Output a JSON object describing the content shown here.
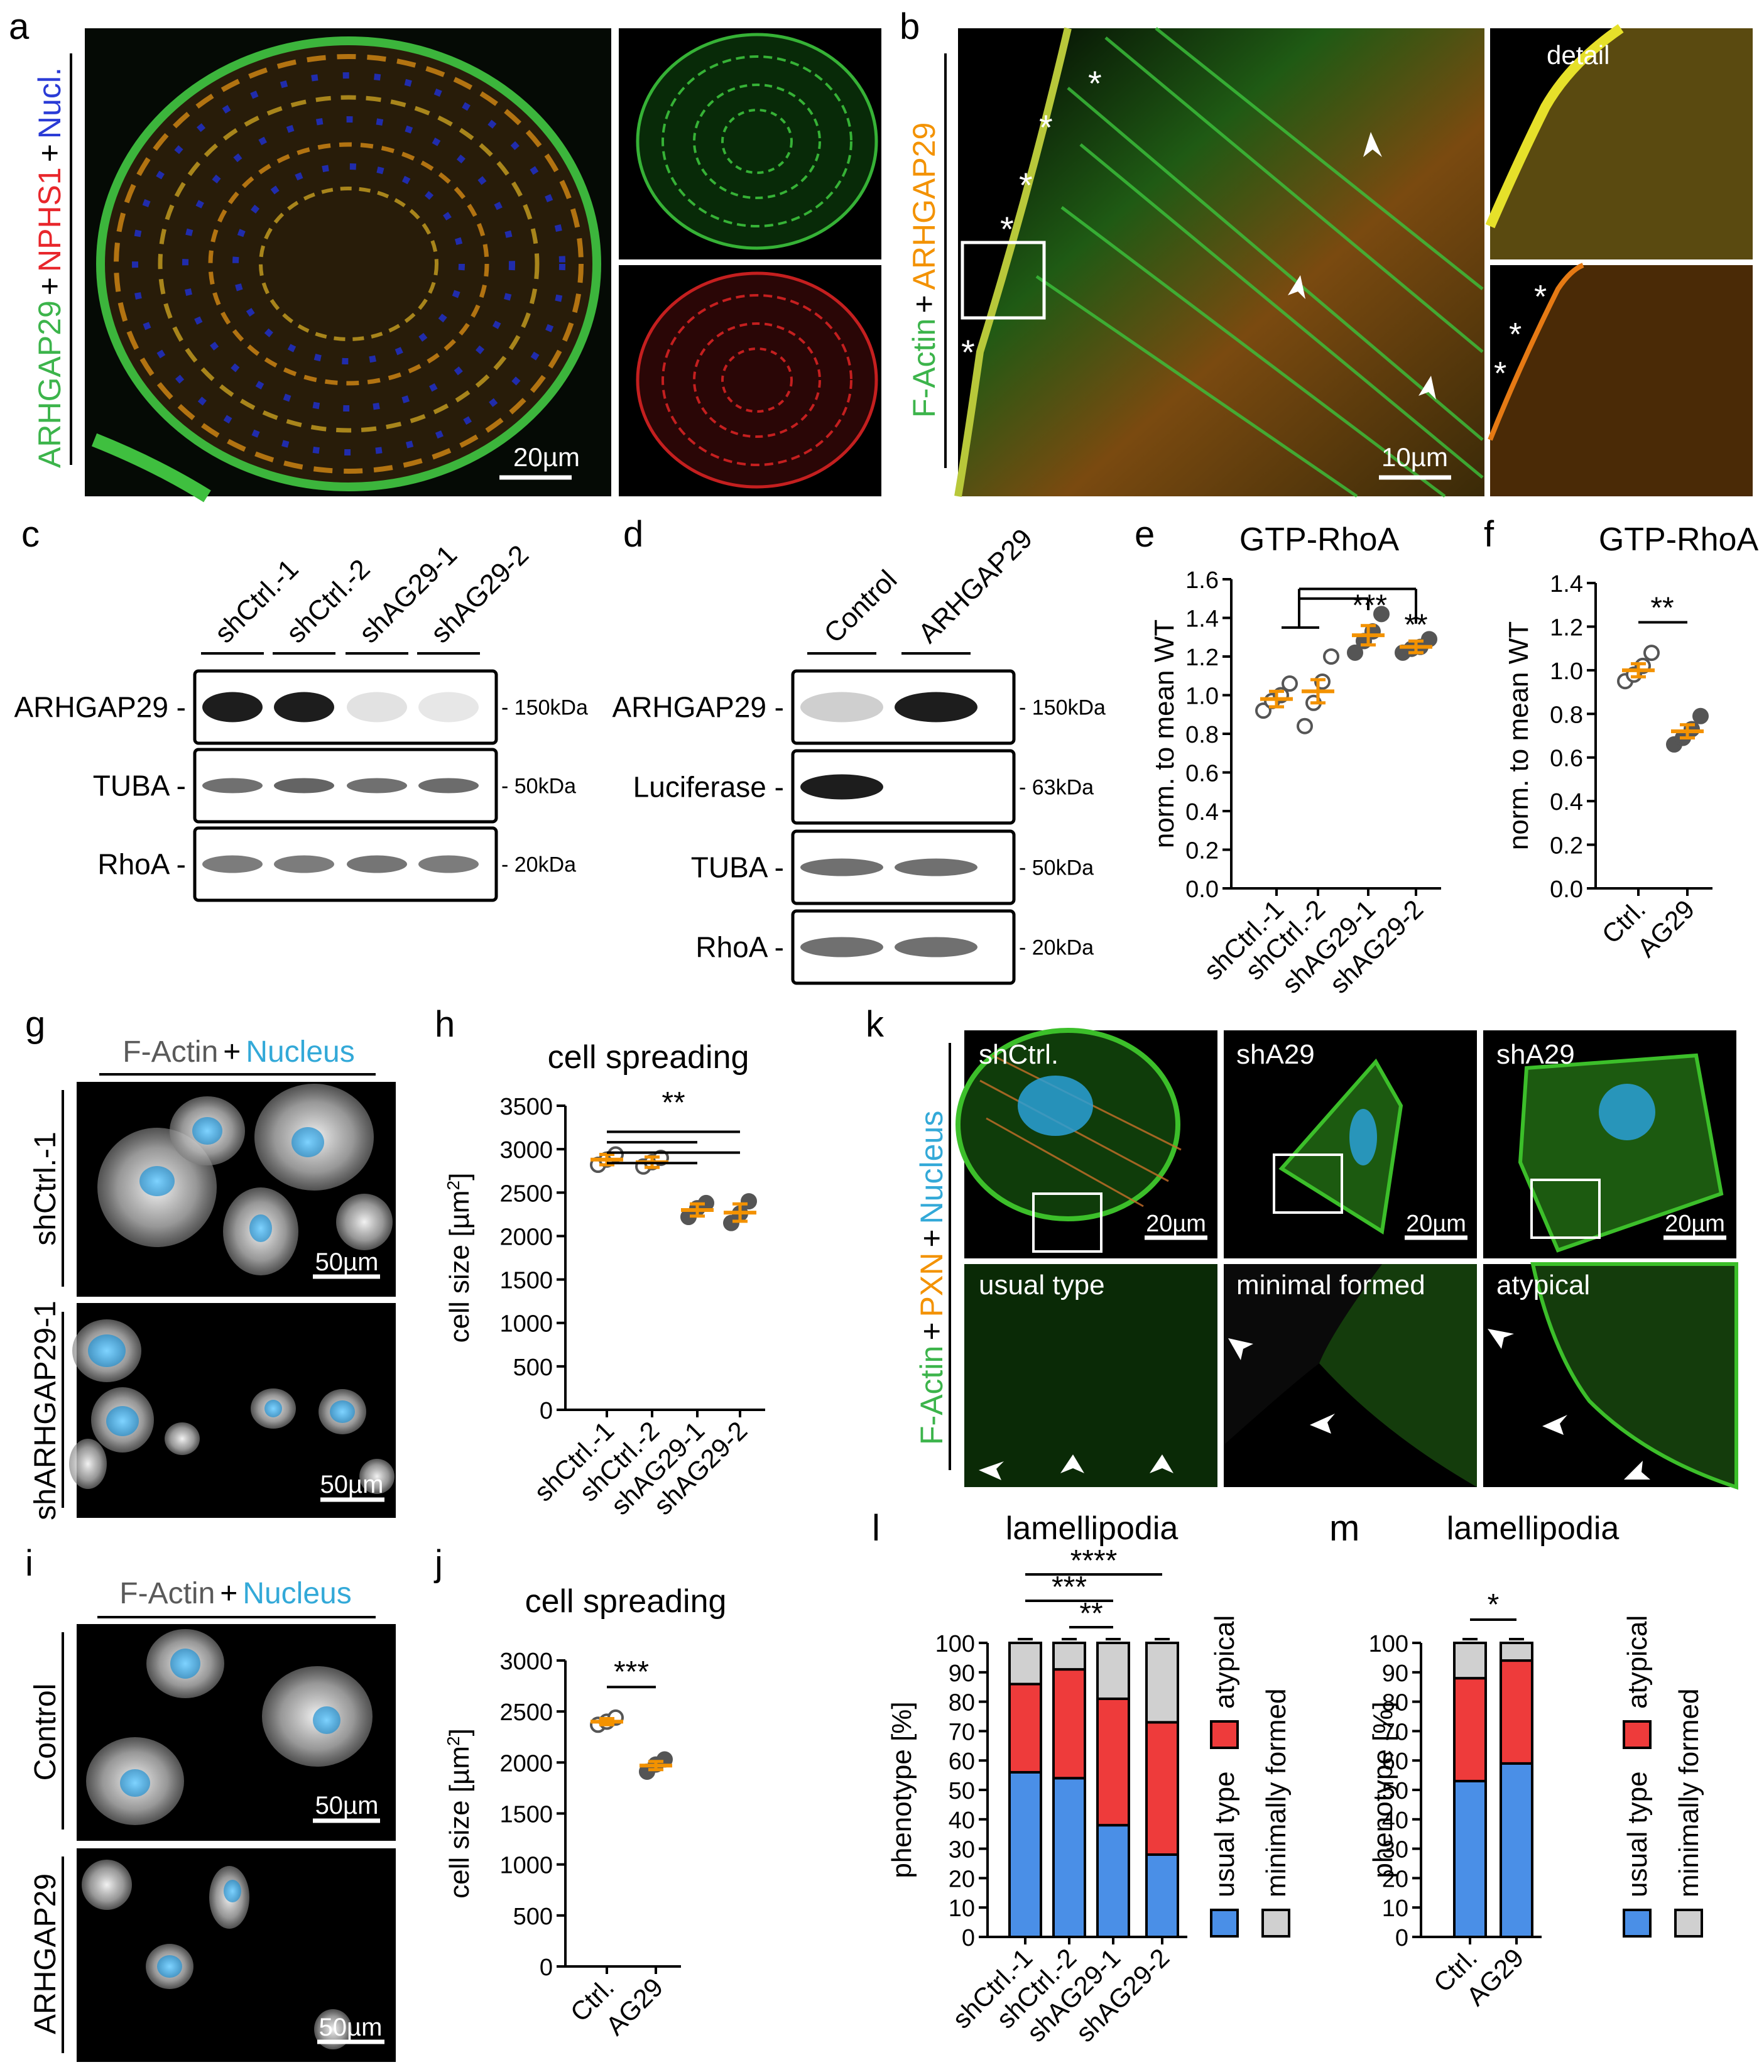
{
  "panels": {
    "a": {
      "letter": "a",
      "stain_parts": [
        "ARHGAP29",
        "+",
        "NPHS1",
        "+",
        "Nucl."
      ],
      "scale": "20µm"
    },
    "b": {
      "letter": "b",
      "stain_parts": [
        "F-Actin",
        "+",
        "ARHGAP29"
      ],
      "detail": "detail",
      "scale": "10µm"
    },
    "c": {
      "letter": "c",
      "lanes": [
        "shCtrl.-1",
        "shCtrl.-2",
        "shAG29-1",
        "shAG29-2"
      ],
      "rows": [
        {
          "label": "ARHGAP29 -",
          "mw": "- 150kDa"
        },
        {
          "label": "TUBA -",
          "mw": "- 50kDa"
        },
        {
          "label": "RhoA -",
          "mw": "- 20kDa"
        }
      ]
    },
    "d": {
      "letter": "d",
      "lanes": [
        "Control",
        "ARHGAP29"
      ],
      "rows": [
        {
          "label": "ARHGAP29 -",
          "mw": "- 150kDa"
        },
        {
          "label": "Luciferase -",
          "mw": "- 63kDa"
        },
        {
          "label": "TUBA -",
          "mw": "- 50kDa"
        },
        {
          "label": "RhoA -",
          "mw": "- 20kDa"
        }
      ]
    },
    "g": {
      "letter": "g",
      "stain_parts": [
        "F-Actin",
        "+",
        "Nucleus"
      ],
      "rows": [
        "shCtrl.-1",
        "shARHGAP29-1"
      ],
      "scale": "50µm"
    },
    "i": {
      "letter": "i",
      "stain_parts": [
        "F-Actin",
        "+",
        "Nucleus"
      ],
      "rows": [
        "Control",
        "ARHGAP29"
      ],
      "scale": "50µm"
    },
    "k": {
      "letter": "k",
      "stain_parts": [
        "F-Actin",
        "+",
        "PXN",
        "+",
        "Nucleus"
      ],
      "top": [
        "shCtrl.",
        "shA29",
        "shA29"
      ],
      "bottom": [
        "usual type",
        "minimal formed",
        "atypical"
      ],
      "scale": "20µm"
    }
  },
  "chart_data": [
    {
      "id": "e",
      "letter": "e",
      "type": "scatter",
      "title": "GTP-RhoA",
      "ylabel": "norm. to mean WT",
      "categories": [
        "shCtrl.-1",
        "shCtrl.-2",
        "shAG29-1",
        "shAG29-2"
      ],
      "yticks": [
        "0.0",
        "0.2",
        "0.4",
        "0.6",
        "0.8",
        "1.0",
        "1.2",
        "1.4",
        "1.6"
      ],
      "ylim": [
        0,
        1.6
      ],
      "means": [
        0.98,
        1.02,
        1.31,
        1.25
      ],
      "sem": [
        0.04,
        0.06,
        0.05,
        0.03
      ],
      "points": [
        [
          0.92,
          0.97,
          1.0,
          1.06
        ],
        [
          0.84,
          0.96,
          1.07,
          1.2
        ],
        [
          1.22,
          1.28,
          1.33,
          1.42
        ],
        [
          1.22,
          1.24,
          1.25,
          1.29
        ]
      ],
      "filled": [
        false,
        false,
        true,
        true
      ],
      "sig": [
        "***",
        "**"
      ]
    },
    {
      "id": "f",
      "letter": "f",
      "type": "scatter",
      "title": "GTP-RhoA",
      "ylabel": "norm. to mean WT",
      "categories": [
        "Ctrl.",
        "AG29"
      ],
      "yticks": [
        "0.0",
        "0.2",
        "0.4",
        "0.6",
        "0.8",
        "1.0",
        "1.2",
        "1.4"
      ],
      "ylim": [
        0,
        1.4
      ],
      "means": [
        1.0,
        0.72
      ],
      "sem": [
        0.03,
        0.03
      ],
      "points": [
        [
          0.95,
          0.98,
          1.02,
          1.08
        ],
        [
          0.66,
          0.69,
          0.73,
          0.79
        ]
      ],
      "filled": [
        false,
        true
      ],
      "sig": [
        "**"
      ]
    },
    {
      "id": "h",
      "letter": "h",
      "type": "scatter",
      "title": "cell spreading",
      "ylabel": "cell size [µm²]",
      "categories": [
        "shCtrl.-1",
        "shCtrl.-2",
        "shAG29-1",
        "shAG29-2"
      ],
      "yticks": [
        "0",
        "500",
        "1000",
        "1500",
        "2000",
        "2500",
        "3000",
        "3500"
      ],
      "ylim": [
        0,
        3500
      ],
      "means": [
        2880,
        2850,
        2300,
        2270
      ],
      "sem": [
        60,
        60,
        70,
        100
      ],
      "points": [
        [
          2820,
          2880,
          2940
        ],
        [
          2800,
          2850,
          2900
        ],
        [
          2220,
          2320,
          2380
        ],
        [
          2150,
          2260,
          2400
        ]
      ],
      "filled": [
        false,
        false,
        true,
        true
      ],
      "sig": [
        "**"
      ]
    },
    {
      "id": "j",
      "letter": "j",
      "type": "scatter",
      "title": "cell spreading",
      "ylabel": "cell size [µm²]",
      "categories": [
        "Ctrl.",
        "AG29"
      ],
      "yticks": [
        "0",
        "500",
        "1000",
        "1500",
        "2000",
        "2500",
        "3000"
      ],
      "ylim": [
        0,
        3000
      ],
      "means": [
        2400,
        1970
      ],
      "sem": [
        30,
        40
      ],
      "points": [
        [
          2370,
          2400,
          2440
        ],
        [
          1910,
          1980,
          2030
        ]
      ],
      "filled": [
        false,
        true
      ],
      "sig": [
        "***"
      ]
    },
    {
      "id": "l",
      "letter": "l",
      "type": "bar",
      "title": "lamellipodia",
      "ylabel": "phenotype [%]",
      "categories": [
        "shCtrl.-1",
        "shCtrl.-2",
        "shAG29-1",
        "shAG29-2"
      ],
      "yticks": [
        "0",
        "10",
        "20",
        "30",
        "40",
        "50",
        "60",
        "70",
        "80",
        "90",
        "100"
      ],
      "ylim": [
        0,
        100
      ],
      "series": [
        {
          "name": "usual type",
          "color": "#4a8fe7",
          "values": [
            56,
            54,
            38,
            28
          ]
        },
        {
          "name": "atypical",
          "color": "#ee3b3b",
          "values": [
            30,
            37,
            43,
            45
          ]
        },
        {
          "name": "minimally formed",
          "color": "#d0d0d0",
          "values": [
            14,
            9,
            19,
            27
          ]
        }
      ],
      "sig": [
        "****",
        "***",
        "**"
      ]
    },
    {
      "id": "m",
      "letter": "m",
      "type": "bar",
      "title": "lamellipodia",
      "ylabel": "phenotype [%]",
      "categories": [
        "Ctrl.",
        "AG29"
      ],
      "yticks": [
        "0",
        "10",
        "20",
        "30",
        "40",
        "50",
        "60",
        "70",
        "80",
        "90",
        "100"
      ],
      "ylim": [
        0,
        100
      ],
      "series": [
        {
          "name": "usual type",
          "color": "#4a8fe7",
          "values": [
            53,
            59
          ]
        },
        {
          "name": "atypical",
          "color": "#ee3b3b",
          "values": [
            35,
            35
          ]
        },
        {
          "name": "minimally formed",
          "color": "#d0d0d0",
          "values": [
            12,
            6
          ]
        }
      ],
      "sig": [
        "*"
      ]
    }
  ],
  "colors": {
    "orange": "#f39200",
    "green": "#3cb44b",
    "red": "#e8262b",
    "blue": "#2a3bd6",
    "cyan": "#33a9d8"
  }
}
